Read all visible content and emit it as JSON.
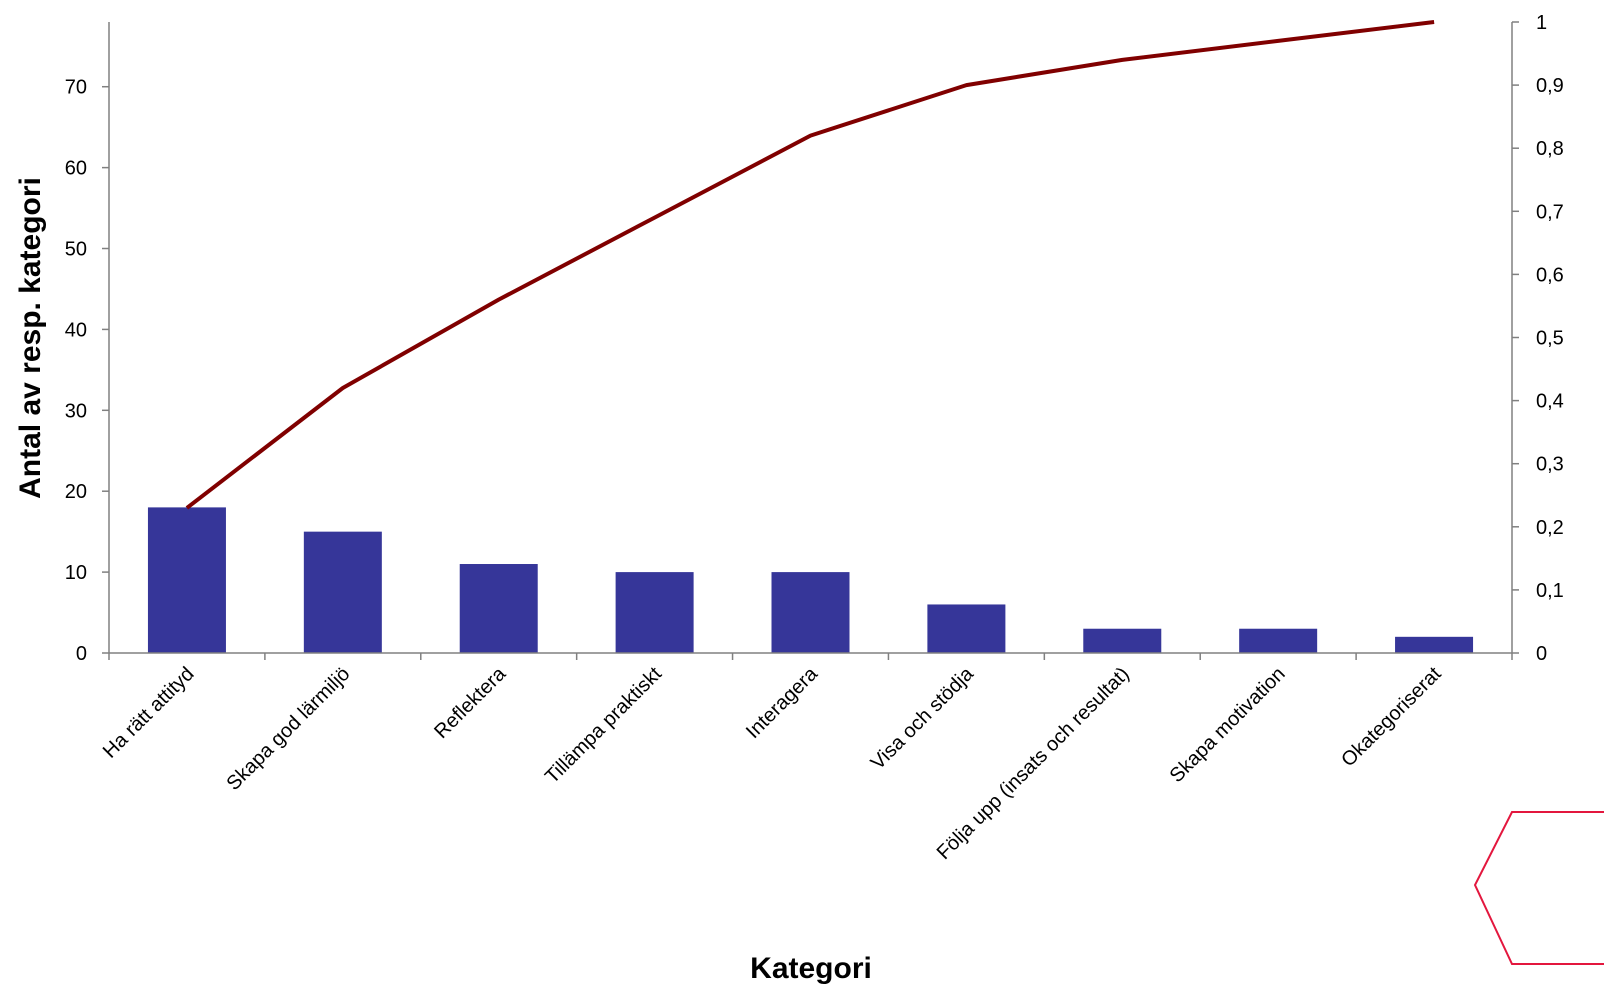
{
  "chart_data": {
    "type": "bar",
    "categories": [
      "Ha rätt attityd",
      "Skapa god lärmiljö",
      "Reflektera",
      "Tillämpa praktiskt",
      "Interagera",
      "Visa och stödja",
      "Följa upp (insats och resultat)",
      "Skapa motivation",
      "Okategoriserat"
    ],
    "values": [
      18,
      15,
      11,
      10,
      10,
      6,
      3,
      3,
      2
    ],
    "cumulative": [
      0.23,
      0.42,
      0.56,
      0.69,
      0.82,
      0.9,
      0.94,
      0.97,
      1.0
    ],
    "xlabel": "Kategori",
    "ylabel": "Antal av resp. kategori",
    "ylim": [
      0,
      78
    ],
    "y_ticks": [
      "0",
      "10",
      "20",
      "30",
      "40",
      "50",
      "60",
      "70"
    ],
    "y2lim": [
      0,
      1.0
    ],
    "y2_ticks": [
      "0",
      "0,1",
      "0,2",
      "0,3",
      "0,4",
      "0,5",
      "0,6",
      "0,7",
      "0,8",
      "0,9",
      "1"
    ],
    "grid": false,
    "legend": "none",
    "colors": {
      "bar": "#363699",
      "line": "#800000",
      "axis": "#808080",
      "decoration": "#e3173e"
    }
  }
}
